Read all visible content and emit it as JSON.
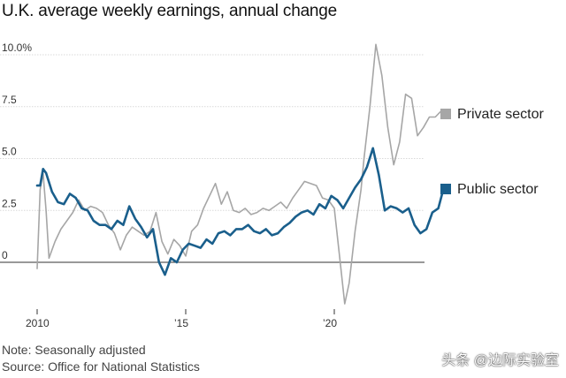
{
  "chart_data": {
    "type": "line",
    "title": "U.K. average weekly earnings, annual change",
    "y_tick_labels": [
      "10.0%",
      "7.5",
      "5.0",
      "2.5",
      "0"
    ],
    "y_ticks": [
      10,
      7.5,
      5,
      2.5,
      0
    ],
    "x_tick_labels": [
      "2010",
      "’15",
      "’20"
    ],
    "x_ticks": [
      2010,
      2015,
      2020
    ],
    "xlim": [
      2010,
      2023
    ],
    "ylim": [
      -2.2,
      11
    ],
    "grid": true,
    "legend_placement": "right",
    "series": [
      {
        "name": "Private sector",
        "color": "#a6a6a6",
        "points": [
          [
            2010.0,
            -0.3
          ],
          [
            2010.1,
            3.5
          ],
          [
            2010.2,
            4.3
          ],
          [
            2010.3,
            2.5
          ],
          [
            2010.4,
            0.2
          ],
          [
            2010.6,
            1.0
          ],
          [
            2010.8,
            1.6
          ],
          [
            2011.0,
            2.0
          ],
          [
            2011.2,
            2.4
          ],
          [
            2011.4,
            3.0
          ],
          [
            2011.6,
            2.5
          ],
          [
            2011.8,
            2.7
          ],
          [
            2012.0,
            2.6
          ],
          [
            2012.2,
            2.4
          ],
          [
            2012.4,
            1.8
          ],
          [
            2012.6,
            1.4
          ],
          [
            2012.8,
            0.6
          ],
          [
            2013.0,
            1.3
          ],
          [
            2013.2,
            1.7
          ],
          [
            2013.4,
            1.5
          ],
          [
            2013.6,
            1.3
          ],
          [
            2013.8,
            1.5
          ],
          [
            2014.0,
            2.4
          ],
          [
            2014.2,
            1.0
          ],
          [
            2014.4,
            0.4
          ],
          [
            2014.6,
            1.1
          ],
          [
            2014.8,
            0.8
          ],
          [
            2015.0,
            0.3
          ],
          [
            2015.2,
            1.5
          ],
          [
            2015.4,
            1.8
          ],
          [
            2015.6,
            2.6
          ],
          [
            2015.8,
            3.2
          ],
          [
            2016.0,
            3.8
          ],
          [
            2016.2,
            2.8
          ],
          [
            2016.4,
            3.4
          ],
          [
            2016.6,
            2.5
          ],
          [
            2016.8,
            2.4
          ],
          [
            2017.0,
            2.6
          ],
          [
            2017.2,
            2.3
          ],
          [
            2017.4,
            2.4
          ],
          [
            2017.6,
            2.6
          ],
          [
            2017.8,
            2.5
          ],
          [
            2018.0,
            2.7
          ],
          [
            2018.2,
            2.9
          ],
          [
            2018.4,
            2.6
          ],
          [
            2018.6,
            3.1
          ],
          [
            2018.8,
            3.5
          ],
          [
            2019.0,
            3.9
          ],
          [
            2019.2,
            3.8
          ],
          [
            2019.4,
            3.7
          ],
          [
            2019.6,
            3.1
          ],
          [
            2019.8,
            3.0
          ],
          [
            2020.0,
            2.6
          ],
          [
            2020.2,
            0.0
          ],
          [
            2020.35,
            -2.0
          ],
          [
            2020.5,
            -1.0
          ],
          [
            2020.7,
            1.5
          ],
          [
            2020.9,
            3.5
          ],
          [
            2021.0,
            5.0
          ],
          [
            2021.2,
            7.5
          ],
          [
            2021.4,
            10.5
          ],
          [
            2021.6,
            9.0
          ],
          [
            2021.8,
            6.5
          ],
          [
            2022.0,
            4.7
          ],
          [
            2022.2,
            5.8
          ],
          [
            2022.4,
            8.1
          ],
          [
            2022.6,
            7.9
          ],
          [
            2022.8,
            6.1
          ],
          [
            2023.0,
            6.5
          ],
          [
            2023.2,
            7.0
          ],
          [
            2023.4,
            7.0
          ],
          [
            2023.6,
            7.3
          ]
        ]
      },
      {
        "name": "Public sector",
        "color": "#1a5f8c",
        "points": [
          [
            2010.0,
            3.7
          ],
          [
            2010.1,
            3.7
          ],
          [
            2010.2,
            4.5
          ],
          [
            2010.3,
            4.3
          ],
          [
            2010.5,
            3.4
          ],
          [
            2010.7,
            2.9
          ],
          [
            2010.9,
            2.8
          ],
          [
            2011.1,
            3.3
          ],
          [
            2011.3,
            3.1
          ],
          [
            2011.5,
            2.6
          ],
          [
            2011.7,
            2.5
          ],
          [
            2011.9,
            2.0
          ],
          [
            2012.1,
            1.8
          ],
          [
            2012.3,
            1.8
          ],
          [
            2012.5,
            1.6
          ],
          [
            2012.7,
            2.0
          ],
          [
            2012.9,
            1.8
          ],
          [
            2013.1,
            2.7
          ],
          [
            2013.3,
            2.1
          ],
          [
            2013.5,
            1.7
          ],
          [
            2013.7,
            1.2
          ],
          [
            2013.9,
            1.6
          ],
          [
            2014.1,
            0.0
          ],
          [
            2014.3,
            -0.6
          ],
          [
            2014.5,
            0.2
          ],
          [
            2014.7,
            0.0
          ],
          [
            2014.9,
            0.6
          ],
          [
            2015.1,
            0.9
          ],
          [
            2015.3,
            0.8
          ],
          [
            2015.5,
            0.7
          ],
          [
            2015.7,
            1.1
          ],
          [
            2015.9,
            0.9
          ],
          [
            2016.1,
            1.4
          ],
          [
            2016.3,
            1.5
          ],
          [
            2016.5,
            1.3
          ],
          [
            2016.7,
            1.6
          ],
          [
            2016.9,
            1.6
          ],
          [
            2017.1,
            1.8
          ],
          [
            2017.3,
            1.5
          ],
          [
            2017.5,
            1.4
          ],
          [
            2017.7,
            1.6
          ],
          [
            2017.9,
            1.3
          ],
          [
            2018.1,
            1.4
          ],
          [
            2018.3,
            1.7
          ],
          [
            2018.5,
            1.9
          ],
          [
            2018.7,
            2.2
          ],
          [
            2018.9,
            2.4
          ],
          [
            2019.1,
            2.5
          ],
          [
            2019.3,
            2.3
          ],
          [
            2019.5,
            2.8
          ],
          [
            2019.7,
            2.6
          ],
          [
            2019.9,
            3.2
          ],
          [
            2020.1,
            3.0
          ],
          [
            2020.3,
            2.6
          ],
          [
            2020.5,
            3.1
          ],
          [
            2020.7,
            3.6
          ],
          [
            2020.9,
            4.0
          ],
          [
            2021.1,
            4.6
          ],
          [
            2021.3,
            5.5
          ],
          [
            2021.5,
            4.2
          ],
          [
            2021.7,
            2.5
          ],
          [
            2021.9,
            2.7
          ],
          [
            2022.1,
            2.6
          ],
          [
            2022.3,
            2.4
          ],
          [
            2022.5,
            2.6
          ],
          [
            2022.7,
            1.8
          ],
          [
            2022.9,
            1.4
          ],
          [
            2023.1,
            1.6
          ],
          [
            2023.3,
            2.4
          ],
          [
            2023.5,
            2.6
          ],
          [
            2023.65,
            3.4
          ]
        ]
      }
    ]
  },
  "notes": {
    "note1": "Note: Seasonally adjusted",
    "note2": "Source: Office for National Statistics"
  },
  "watermark": "头条 @边际实验室"
}
